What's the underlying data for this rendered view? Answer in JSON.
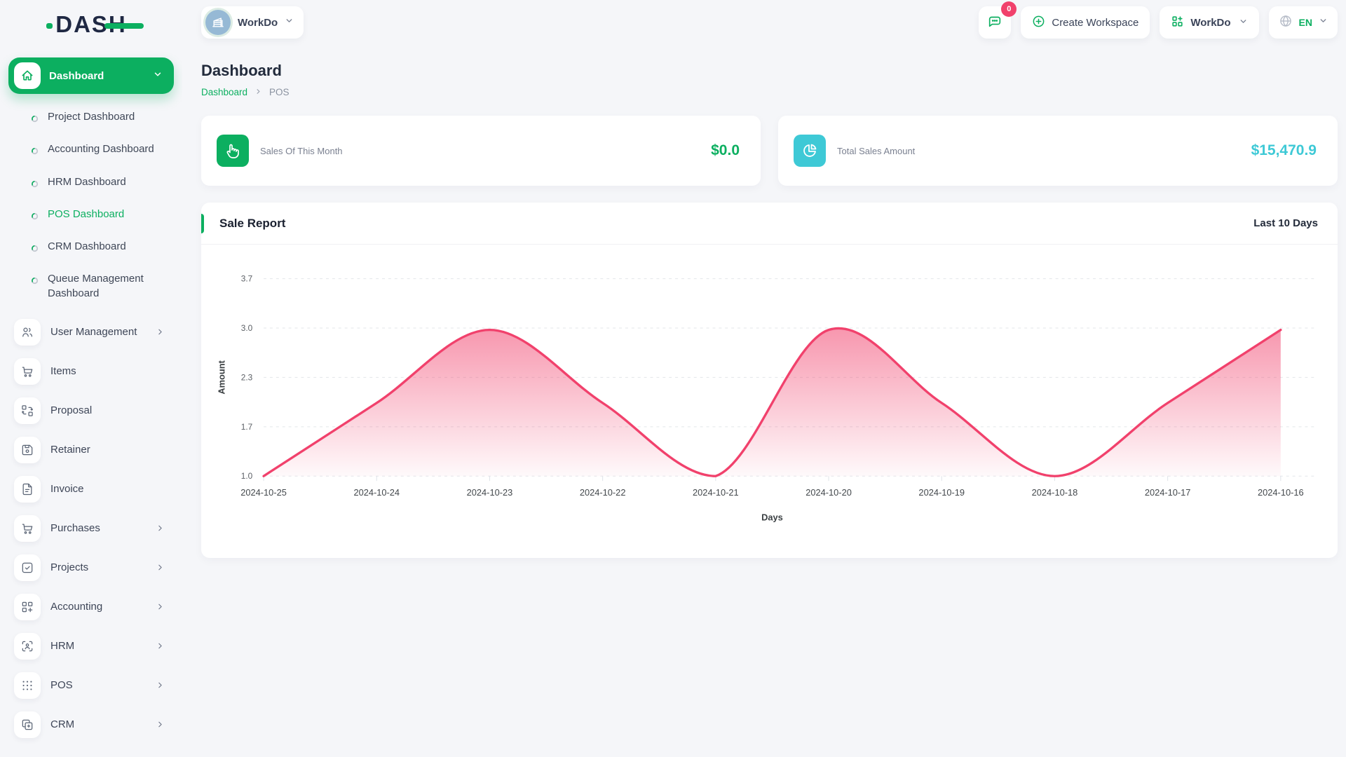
{
  "app": {
    "logo_text": "DASH"
  },
  "header": {
    "workspace_switcher": {
      "name": "WorkDo"
    },
    "messages_badge": "0",
    "create_workspace_label": "Create Workspace",
    "workspace_menu_label": "WorkDo",
    "language": "EN"
  },
  "sidebar": {
    "dashboard_group": {
      "label": "Dashboard"
    },
    "dashboard_items": [
      {
        "label": "Project Dashboard",
        "active": false
      },
      {
        "label": "Accounting Dashboard",
        "active": false
      },
      {
        "label": "HRM Dashboard",
        "active": false
      },
      {
        "label": "POS Dashboard",
        "active": true
      },
      {
        "label": "CRM Dashboard",
        "active": false
      },
      {
        "label": "Queue Management Dashboard",
        "active": false
      }
    ],
    "menu_items": [
      {
        "label": "User Management",
        "icon": "users-icon",
        "expandable": true
      },
      {
        "label": "Items",
        "icon": "cart-icon",
        "expandable": false
      },
      {
        "label": "Proposal",
        "icon": "proposal-icon",
        "expandable": false
      },
      {
        "label": "Retainer",
        "icon": "retainer-icon",
        "expandable": false
      },
      {
        "label": "Invoice",
        "icon": "invoice-icon",
        "expandable": false
      },
      {
        "label": "Purchases",
        "icon": "cart-icon",
        "expandable": true
      },
      {
        "label": "Projects",
        "icon": "projects-icon",
        "expandable": true
      },
      {
        "label": "Accounting",
        "icon": "accounting-icon",
        "expandable": true
      },
      {
        "label": "HRM",
        "icon": "hrm-icon",
        "expandable": true
      },
      {
        "label": "POS",
        "icon": "pos-icon",
        "expandable": true
      },
      {
        "label": "CRM",
        "icon": "crm-icon",
        "expandable": true
      }
    ]
  },
  "page": {
    "title": "Dashboard",
    "breadcrumb": [
      "Dashboard",
      "POS"
    ]
  },
  "stats": [
    {
      "label": "Sales Of This Month",
      "value": "$0.0",
      "accent": "#0caf60",
      "icon": "tap-icon"
    },
    {
      "label": "Total Sales Amount",
      "value": "$15,470.9",
      "accent": "#3ec9d6",
      "icon": "pie-chart-icon"
    }
  ],
  "chart_card": {
    "title": "Sale Report",
    "range_label": "Last 10 Days"
  },
  "chart_data": {
    "type": "area",
    "title": "Sale Report",
    "x": [
      "2024-10-25",
      "2024-10-24",
      "2024-10-23",
      "2024-10-22",
      "2024-10-21",
      "2024-10-20",
      "2024-10-19",
      "2024-10-18",
      "2024-10-17",
      "2024-10-16"
    ],
    "series": [
      {
        "name": "Amount",
        "values": [
          1,
          2,
          3,
          2,
          1,
          3,
          2,
          1,
          2,
          3
        ]
      }
    ],
    "xlabel": "Days",
    "ylabel": "Amount",
    "y_tick_labels": [
      "3.7",
      "3.0",
      "2.3",
      "1.7",
      "1.0"
    ],
    "ylim": [
      1.0,
      3.7
    ],
    "grid": true,
    "legend": "none",
    "line_color": "#f1416c",
    "fill_color": "#f1416c",
    "grid_color": "#e3e6ea",
    "tick_color": "#5c6066",
    "xlabel_color": "#43484c"
  },
  "colors": {
    "primary_green": "#0caf60",
    "teal": "#3ec9d6",
    "pink": "#f1416c",
    "page_bg": "#f5f6f9"
  }
}
